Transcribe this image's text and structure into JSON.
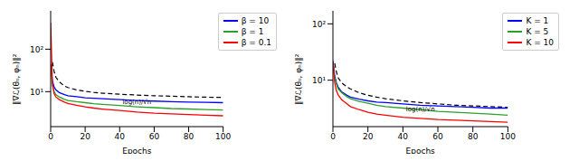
{
  "chart_data": [
    {
      "type": "line",
      "x_label": "Epochs",
      "y_label": "‖∇ℒ(θₙ, φₙ)‖²",
      "log": "y",
      "grid": false,
      "legend": "upper right",
      "x": [
        0,
        1,
        2,
        3,
        5,
        8,
        10,
        15,
        20,
        25,
        30,
        40,
        50,
        60,
        70,
        80,
        90,
        100
      ],
      "xlim": [
        0,
        100
      ],
      "xticks": [
        0,
        20,
        40,
        60,
        80,
        100
      ],
      "ylim": [
        1.5,
        800
      ],
      "yticks": [
        {
          "value": 10,
          "label": "10¹"
        },
        {
          "value": 100,
          "label": "10²"
        }
      ],
      "series": [
        {
          "name": "β = 10",
          "color": "#0000ff",
          "values": [
            45,
            18,
            13,
            11,
            9.5,
            8.5,
            8,
            7.6,
            7.2,
            7,
            6.8,
            6.5,
            6.2,
            6,
            5.8,
            5.7,
            5.6,
            5.5
          ]
        },
        {
          "name": "β = 1",
          "color": "#2ca02c",
          "values": [
            40,
            14,
            10,
            8.5,
            7.5,
            6.6,
            6.2,
            5.8,
            5.5,
            5.2,
            5,
            4.7,
            4.4,
            4.2,
            4,
            3.9,
            3.8,
            3.7
          ]
        },
        {
          "name": "β = 0.1",
          "color": "#ff0000",
          "values": [
            420,
            16,
            9,
            7.5,
            6.5,
            5.7,
            5.3,
            4.8,
            4.4,
            4.1,
            3.9,
            3.6,
            3.3,
            3.1,
            3,
            2.9,
            2.8,
            2.7
          ]
        }
      ],
      "reference": {
        "label": "log(n)/√n",
        "color": "#000000",
        "line_style": "dashed",
        "values": [
          null,
          50,
          30,
          22,
          17,
          13.5,
          12.5,
          11,
          10.2,
          9.6,
          9.2,
          8.7,
          8.3,
          8,
          7.8,
          7.6,
          7.4,
          7.3
        ]
      }
    },
    {
      "type": "line",
      "x_label": "Epochs",
      "y_label": "‖∇ℒ(θₙ, φₙ)‖²",
      "log": "y",
      "grid": false,
      "legend": "upper right",
      "x": [
        0,
        1,
        2,
        3,
        5,
        8,
        10,
        15,
        20,
        25,
        30,
        40,
        50,
        60,
        70,
        80,
        90,
        100
      ],
      "xlim": [
        0,
        100
      ],
      "xticks": [
        0,
        20,
        40,
        60,
        80,
        100
      ],
      "ylim": [
        1.5,
        170
      ],
      "yticks": [
        {
          "value": 10,
          "label": "10¹"
        },
        {
          "value": 100,
          "label": "10²"
        }
      ],
      "series": [
        {
          "name": "K = 1",
          "color": "#0000ff",
          "values": [
            22,
            12,
            9,
            7.5,
            6.2,
            5.4,
            5,
            4.6,
            4.3,
            4.1,
            4,
            3.8,
            3.6,
            3.5,
            3.4,
            3.3,
            3.2,
            3.2
          ]
        },
        {
          "name": "K = 5",
          "color": "#2ca02c",
          "values": [
            20,
            11,
            8.5,
            7,
            6,
            5.1,
            4.7,
            4.2,
            3.9,
            3.6,
            3.4,
            3.2,
            3,
            2.8,
            2.7,
            2.6,
            2.5,
            2.4
          ]
        },
        {
          "name": "K = 10",
          "color": "#ff0000",
          "values": [
            21,
            9,
            6.5,
            5.5,
            4.5,
            3.8,
            3.4,
            3,
            2.7,
            2.5,
            2.4,
            2.2,
            2.1,
            2,
            1.95,
            1.9,
            1.85,
            1.8
          ]
        }
      ],
      "reference": {
        "label": "log(n)/√n",
        "color": "#000000",
        "line_style": "dashed",
        "values": [
          null,
          20,
          14,
          11,
          9,
          7.6,
          7,
          6,
          5.4,
          5,
          4.7,
          4.3,
          4,
          3.8,
          3.6,
          3.5,
          3.4,
          3.3
        ]
      }
    }
  ]
}
